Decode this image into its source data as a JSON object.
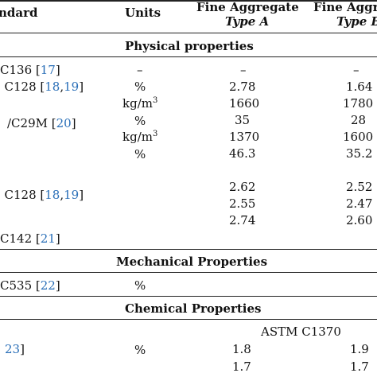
{
  "header": {
    "standard": "ndard",
    "units": "Units",
    "fine_a": "Fine Aggregate",
    "type_a": "Type A",
    "fine_b": "Fine Aggre",
    "type_b": "Type B"
  },
  "sections": {
    "physical": "Physical properties",
    "mechanical": "Mechanical Properties",
    "chemical": "Chemical Properties"
  },
  "std": {
    "r1": "C136 [",
    "r1_ref": "17",
    "r1_end": "]",
    "r2": ", C128 [",
    "r2_ref1": "18",
    "r2_ref2": "19",
    "r2_end": "]",
    "r3": "/C29M [",
    "r3_ref": "20",
    "r3_end": "]",
    "r4": ", C128 [",
    "r4_ref1": "18",
    "r4_ref2": "19",
    "r4_end": "]",
    "r5": "C142 [",
    "r5_ref": "21",
    "r5_end": "]",
    "r6": "C535 [",
    "r6_ref": "22",
    "r6_end": "]",
    "r7_ref": "23",
    "r7_end": "]"
  },
  "units": {
    "u1": "–",
    "u2": "%",
    "u3": "kg/m",
    "u3_sup": "3",
    "u4": "%",
    "u5": "kg/m",
    "u5_sup": "3",
    "u6": "%",
    "u7": "%",
    "u8": "%"
  },
  "type_a": [
    "–",
    "2.78",
    "1660",
    "35",
    "1370",
    "46.3",
    "2.62",
    "2.55",
    "2.74",
    "1.8",
    "1.7"
  ],
  "type_b": [
    "–",
    "1.64",
    "1780",
    "28",
    "1600",
    "35.2",
    "2.52",
    "2.47",
    "2.60",
    "1.9",
    "1.7"
  ],
  "astm": "ASTM C1370",
  "ref_color": "#2a6fb8"
}
